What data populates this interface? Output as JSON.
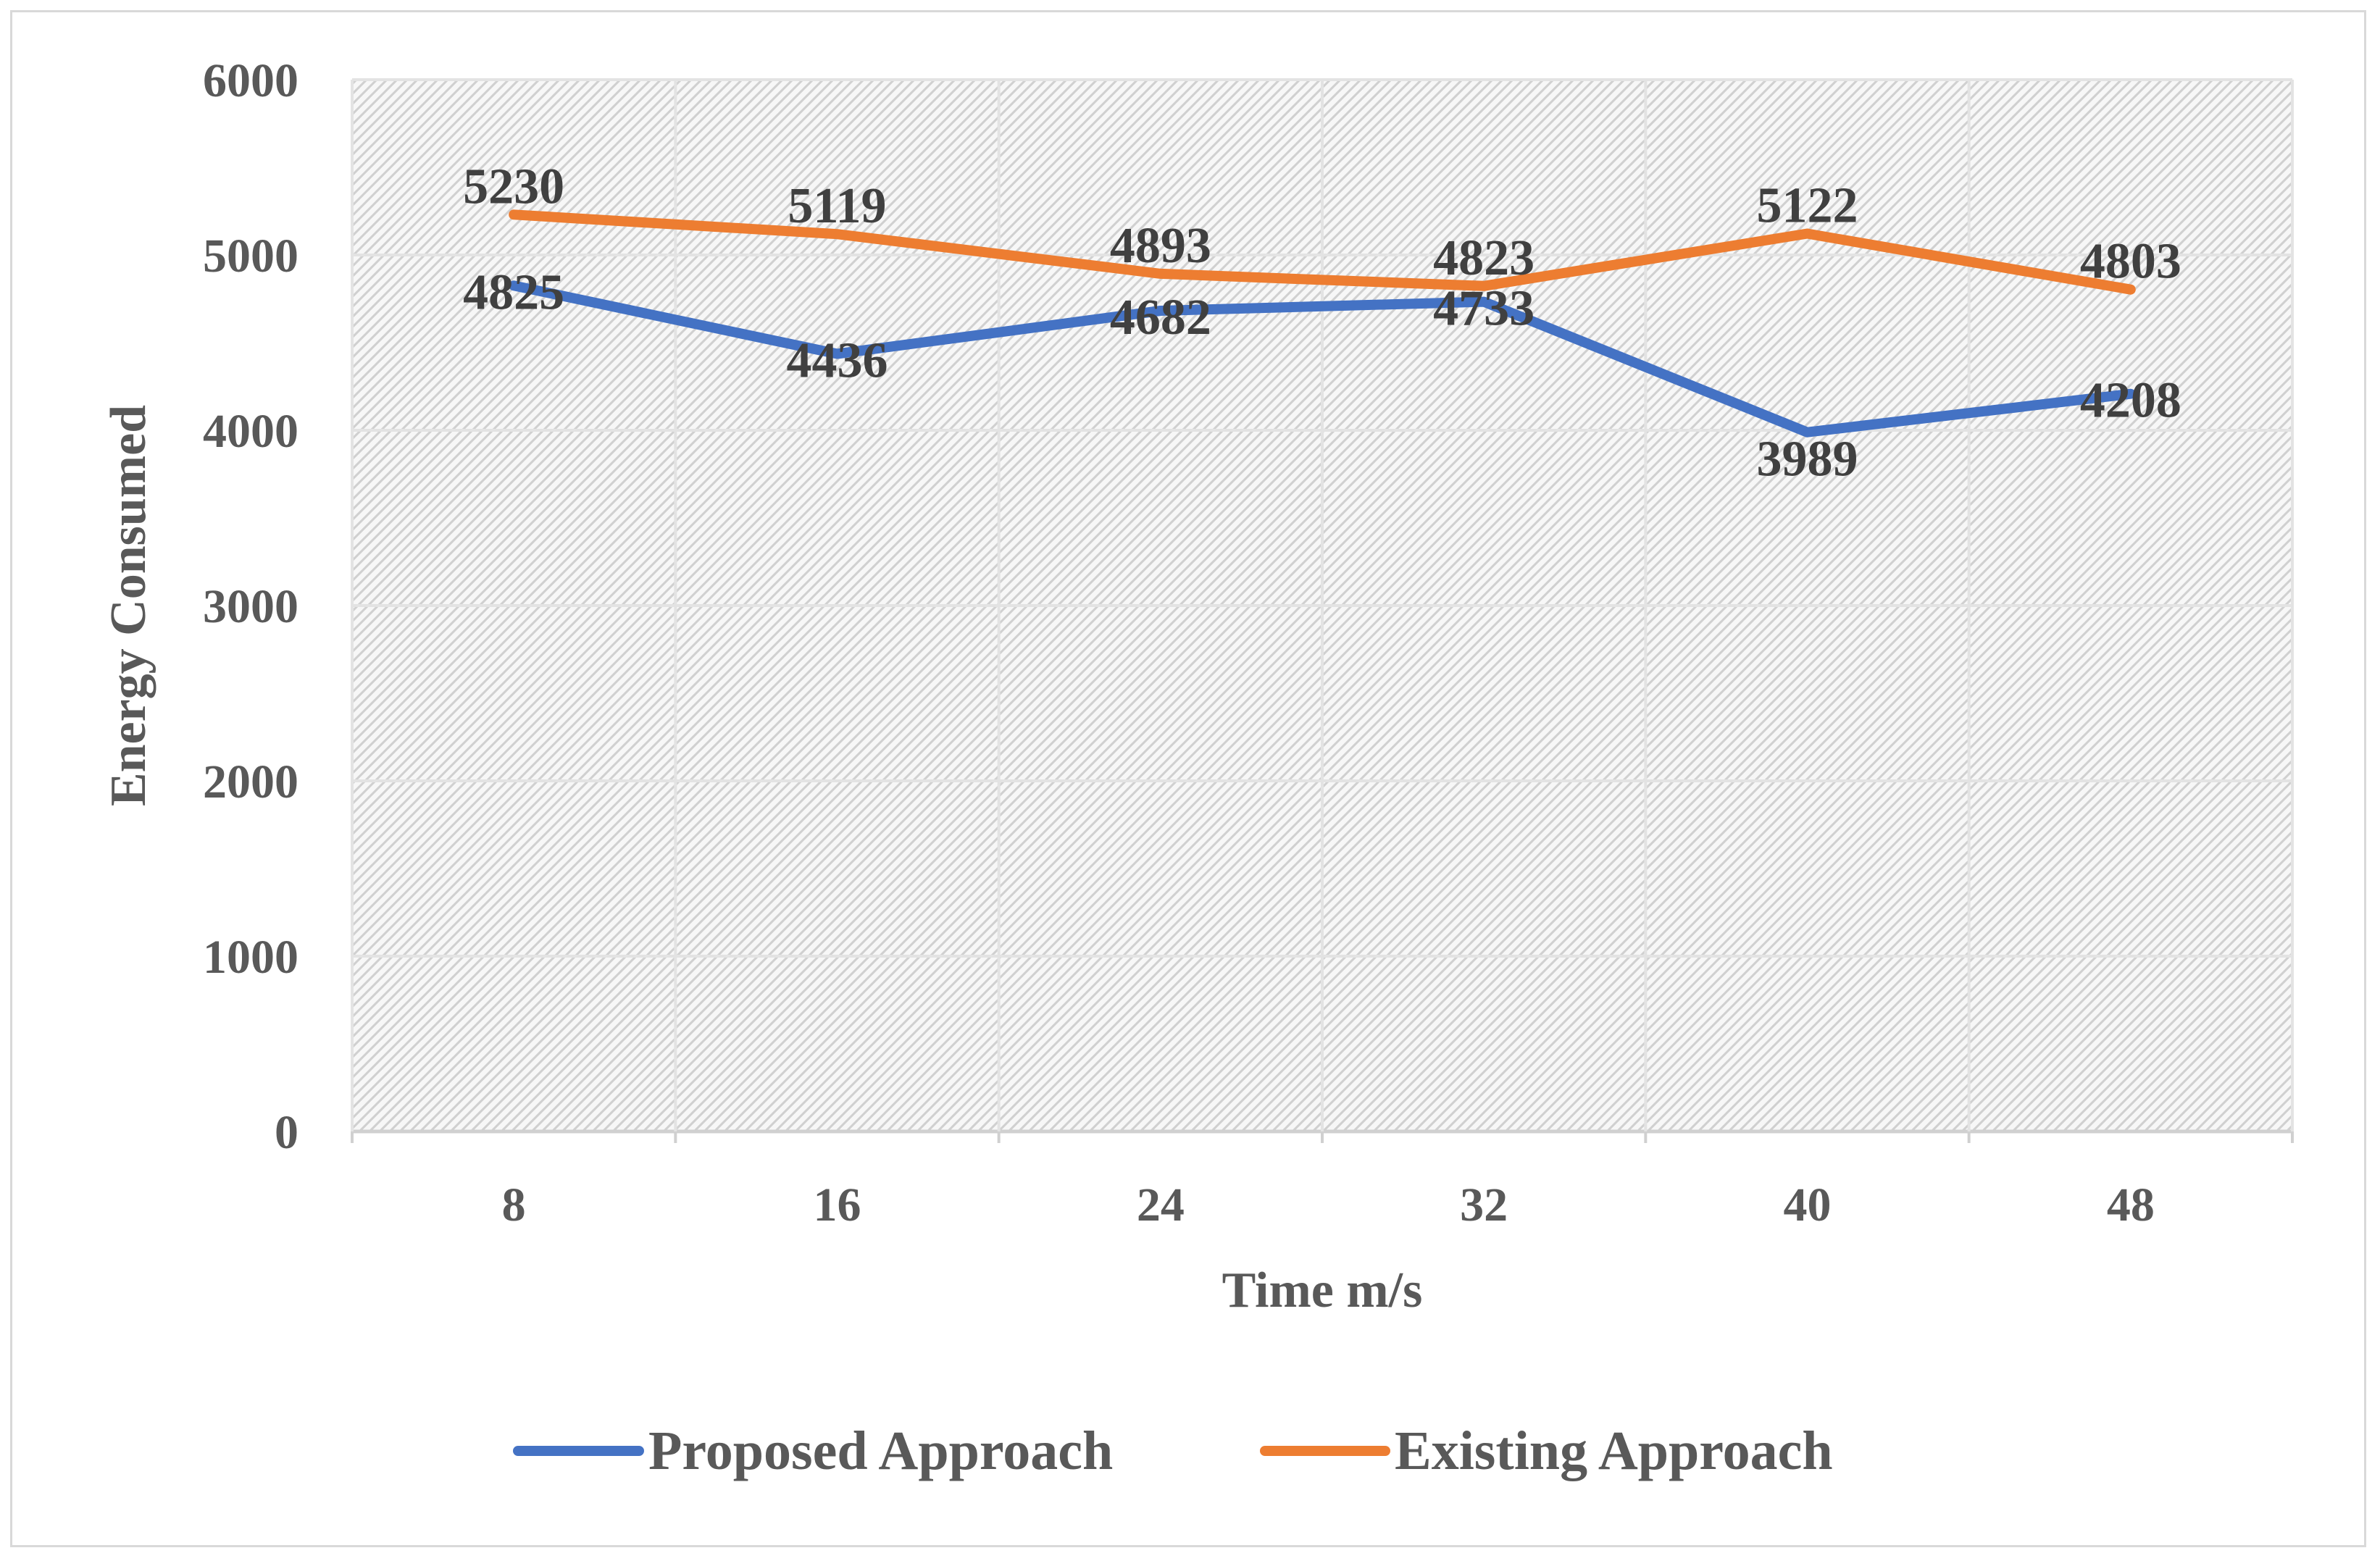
{
  "chart_data": {
    "type": "line",
    "title": "",
    "xlabel": "Time m/s",
    "ylabel": "Energy Consumed",
    "categories": [
      "8",
      "16",
      "24",
      "32",
      "40",
      "48"
    ],
    "ylim": [
      0,
      6000
    ],
    "yticks": [
      0,
      1000,
      2000,
      3000,
      4000,
      5000,
      6000
    ],
    "grid": true,
    "legend_position": "bottom",
    "series": [
      {
        "name": "Proposed Approach",
        "color": "#4472c4",
        "values": [
          4825,
          4436,
          4682,
          4733,
          3989,
          4208
        ]
      },
      {
        "name": "Existing Approach",
        "color": "#ed7d31",
        "values": [
          5230,
          5119,
          4893,
          4823,
          5122,
          4803
        ]
      }
    ]
  }
}
